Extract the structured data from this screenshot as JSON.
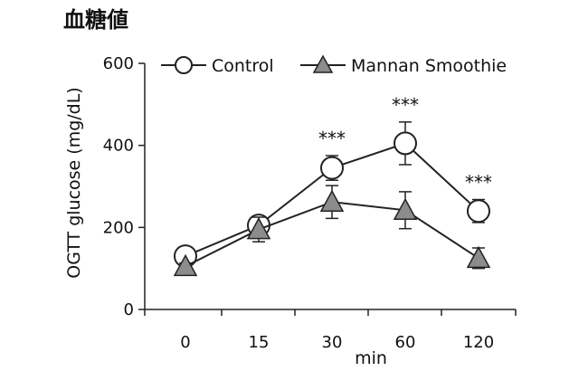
{
  "chart_data": {
    "type": "line",
    "title": "血糖値",
    "xlabel": "min",
    "ylabel": "OGTT glucose (mg/dL)",
    "categories": [
      "0",
      "15",
      "30",
      "60",
      "120"
    ],
    "ylim": [
      0,
      600
    ],
    "yticks": [
      0,
      200,
      400,
      600
    ],
    "legend_position": "top",
    "series": [
      {
        "name": "Control",
        "marker": "circle",
        "values": [
          130,
          205,
          345,
          405,
          240
        ],
        "errors": [
          10,
          14,
          30,
          52,
          28
        ],
        "significance": [
          "",
          "",
          "***",
          "***",
          "***"
        ]
      },
      {
        "name": "Mannan Smoothie",
        "marker": "triangle",
        "values": [
          105,
          195,
          262,
          242,
          125
        ],
        "errors": [
          8,
          30,
          40,
          45,
          25
        ],
        "significance": [
          "",
          "",
          "",
          "",
          ""
        ]
      }
    ],
    "colors": {
      "line": "#222222",
      "triangle_fill": "#8c8c8c",
      "circle_fill": "#ffffff"
    }
  }
}
